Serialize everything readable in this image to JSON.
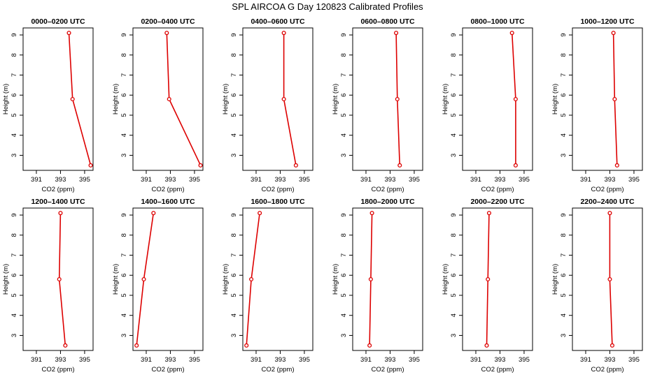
{
  "title": "SPL AIRCOA G  Day 120823  Calibrated Profiles",
  "chart_data": {
    "type": "line",
    "xlabel": "CO2 (ppm)",
    "ylabel": "Height (m)",
    "xlim": [
      389.9,
      395.7
    ],
    "ylim": [
      2.25,
      9.35
    ],
    "xticks": [
      391,
      393,
      395
    ],
    "yticks": [
      3,
      4,
      5,
      6,
      7,
      8,
      9
    ],
    "heights": [
      2.5,
      5.8,
      9.1
    ],
    "line_color": "#dd0000",
    "panels": [
      {
        "title": "0000–0200 UTC",
        "co2": [
          395.5,
          394.0,
          393.7
        ]
      },
      {
        "title": "0200–0400 UTC",
        "co2": [
          395.5,
          392.9,
          392.7
        ]
      },
      {
        "title": "0400–0600 UTC",
        "co2": [
          394.3,
          393.3,
          393.3
        ]
      },
      {
        "title": "0600–0800 UTC",
        "co2": [
          393.8,
          393.6,
          393.5
        ]
      },
      {
        "title": "0800–1000 UTC",
        "co2": [
          394.3,
          394.3,
          394.0
        ]
      },
      {
        "title": "1000–1200 UTC",
        "co2": [
          393.6,
          393.4,
          393.3
        ]
      },
      {
        "title": "1200–1400 UTC",
        "co2": [
          393.4,
          392.9,
          393.0
        ]
      },
      {
        "title": "1400–1600 UTC",
        "co2": [
          390.2,
          390.8,
          391.6
        ]
      },
      {
        "title": "1600–1800 UTC",
        "co2": [
          390.2,
          390.6,
          391.3
        ]
      },
      {
        "title": "1800–2000 UTC",
        "co2": [
          391.3,
          391.4,
          391.5
        ]
      },
      {
        "title": "2000–2200 UTC",
        "co2": [
          391.9,
          392.0,
          392.1
        ]
      },
      {
        "title": "2200–2400 UTC",
        "co2": [
          393.2,
          393.0,
          393.0
        ]
      }
    ]
  }
}
